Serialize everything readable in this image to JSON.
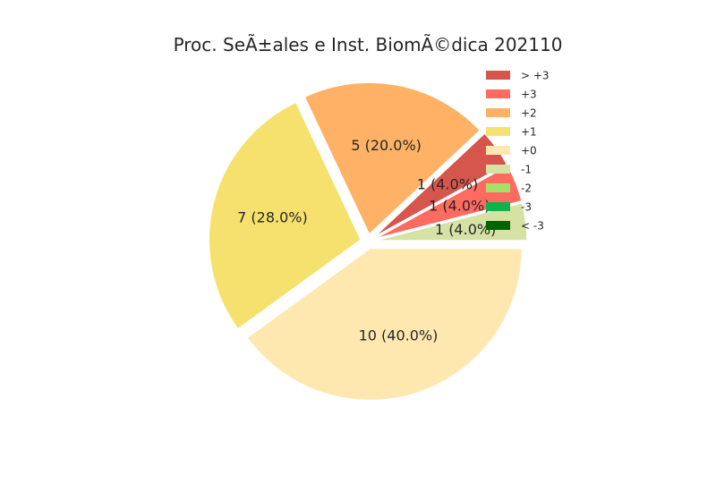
{
  "chart_data": {
    "type": "pie",
    "title": "Proc. SeÃ±ales e Inst. BiomÃ©dica 202110",
    "legend_placement": "top-right",
    "legend": [
      {
        "label": "> +3",
        "color": "#d6554d"
      },
      {
        "label": "+3",
        "color": "#ff6b61"
      },
      {
        "label": "+2",
        "color": "#ffb266"
      },
      {
        "label": "+1",
        "color": "#f7e16e"
      },
      {
        "label": "+0",
        "color": "#ffe8b0"
      },
      {
        "label": "-1",
        "color": "#d5e2a3"
      },
      {
        "label": "-2",
        "color": "#a6e06b"
      },
      {
        "label": "-3",
        "color": "#10b04a"
      },
      {
        "label": "< -3",
        "color": "#006400"
      }
    ],
    "slices": [
      {
        "legend": "-1",
        "value": 1,
        "label": "1 (4.0%)",
        "color": "#d5e2a3"
      },
      {
        "legend": "+3",
        "value": 1,
        "label": "1 (4.0%)",
        "color": "#ff6b61"
      },
      {
        "legend": "> +3",
        "value": 1,
        "label": "1 (4.0%)",
        "color": "#d6554d"
      },
      {
        "legend": "+2",
        "value": 5,
        "label": "5 (20.0%)",
        "color": "#ffb266"
      },
      {
        "legend": "+1",
        "value": 7,
        "label": "7 (28.0%)",
        "color": "#f7e16e"
      },
      {
        "legend": "+0",
        "value": 10,
        "label": "10 (40.0%)",
        "color": "#ffe8b0"
      }
    ]
  }
}
